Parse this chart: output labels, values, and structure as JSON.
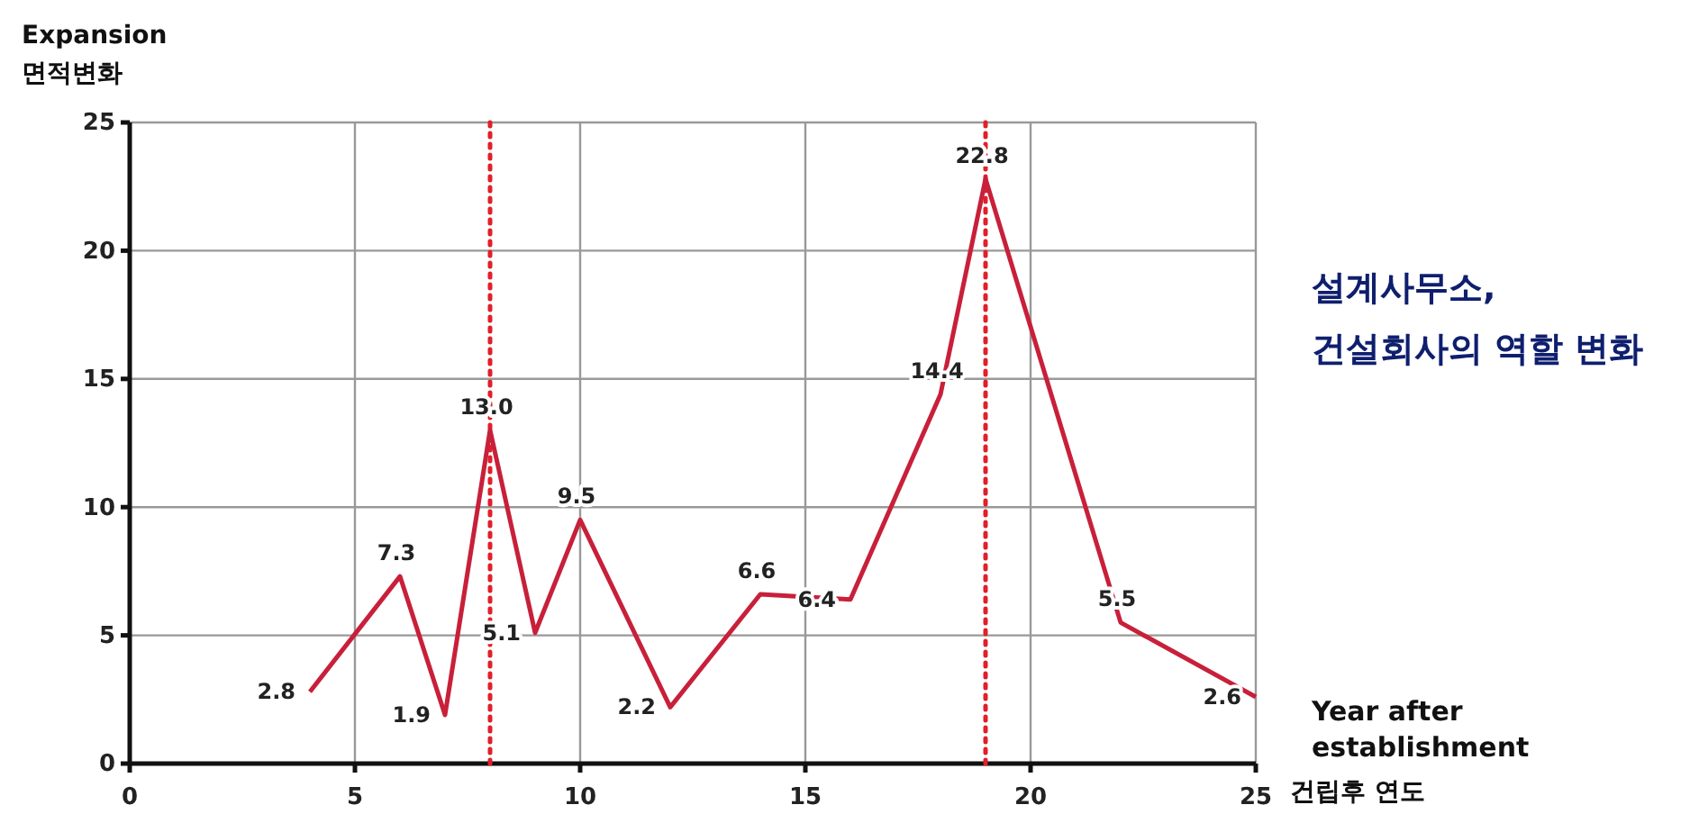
{
  "chart_data": {
    "type": "line",
    "ylabel": "Expansion\n면적변화",
    "xlabel": "Year after\nestablishment\n건립후 연도",
    "x": [
      4,
      6,
      7,
      8,
      9,
      10,
      12,
      14,
      16,
      18,
      19,
      22,
      25
    ],
    "series": [
      {
        "color": "#c8203a",
        "values": [
          2.8,
          7.3,
          1.9,
          13.0,
          5.1,
          9.5,
          2.2,
          6.6,
          6.4,
          14.4,
          22.8,
          5.5,
          2.6
        ],
        "value_labels": [
          "2.8",
          "7.3",
          "1.9",
          "13.0",
          "5.1",
          "9.5",
          "2.2",
          "6.6",
          "6.4",
          "14.4",
          "22.8",
          "5.5",
          "2.6"
        ]
      }
    ],
    "xlim": [
      0,
      25
    ],
    "xticks": [
      0,
      5,
      10,
      15,
      20,
      25
    ],
    "ylim": [
      0,
      25
    ],
    "yticks": [
      0,
      5,
      10,
      15,
      20,
      25
    ],
    "grid": true,
    "marker": "none",
    "line_style": "solid",
    "ref_lines": [
      {
        "axis": "x",
        "value": 8,
        "color": "#e0202a",
        "line_style": "dotted"
      },
      {
        "axis": "x",
        "value": 19,
        "color": "#e0202a",
        "line_style": "dotted"
      }
    ],
    "annotations": [
      "설계사무소,\n건설회사의 역할 변화"
    ]
  }
}
